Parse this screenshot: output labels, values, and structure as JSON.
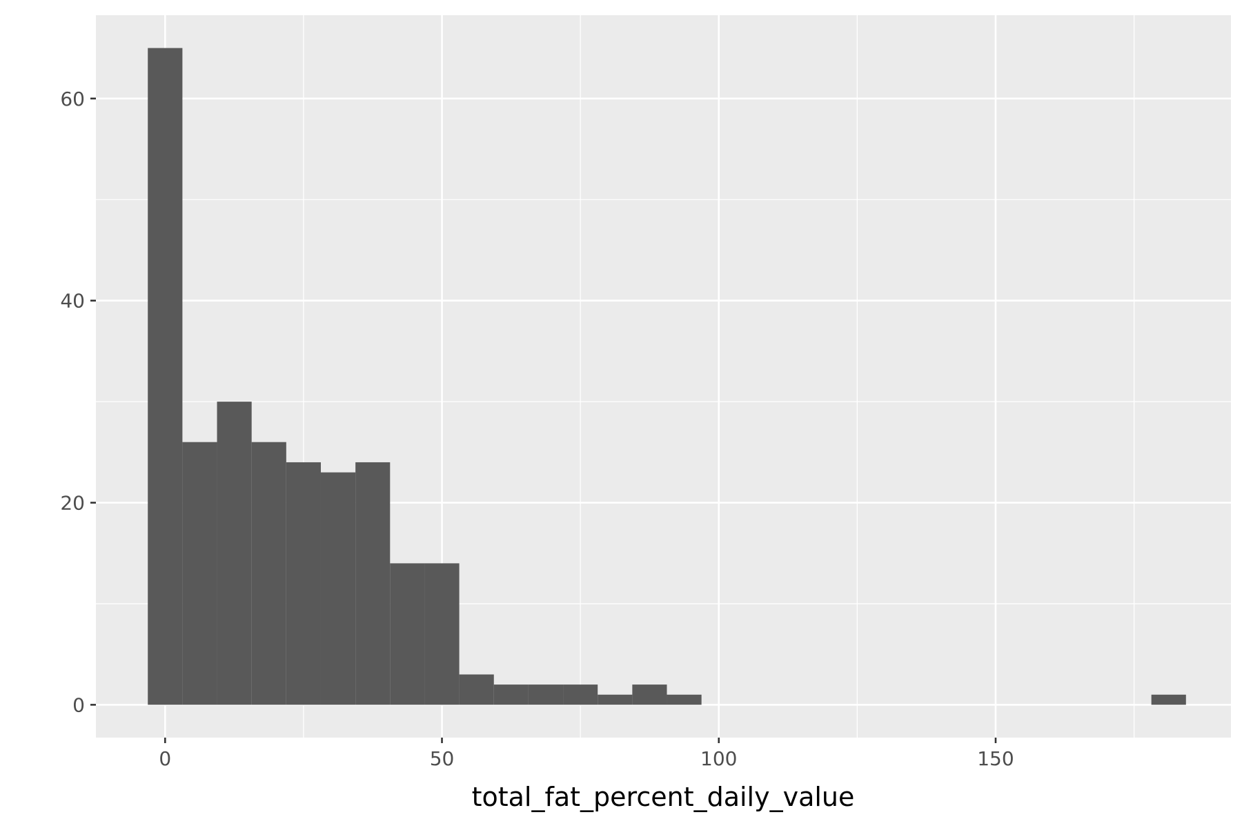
{
  "chart_data": {
    "type": "bar",
    "subtype": "histogram",
    "title": "",
    "xlabel": "total_fat_percent_daily_value",
    "ylabel": "",
    "xlim": [
      -12.5,
      192.5
    ],
    "ylim": [
      -3.25,
      68.25
    ],
    "x_ticks": [
      0,
      50,
      100,
      150
    ],
    "y_ticks": [
      0,
      20,
      40,
      60
    ],
    "x_minor_ticks": [
      25,
      75,
      125,
      175
    ],
    "y_minor_ticks": [
      10,
      30,
      50
    ],
    "grid": true,
    "bin_width": 6.25,
    "bin_start": -3.125,
    "values": [
      65,
      26,
      30,
      26,
      24,
      23,
      24,
      14,
      14,
      3,
      2,
      2,
      2,
      1,
      2,
      1,
      0,
      0,
      0,
      0,
      0,
      0,
      0,
      0,
      0,
      0,
      0,
      0,
      0,
      1
    ],
    "bar_color": "#595959",
    "panel_color": "#ebebeb",
    "grid_color": "#ffffff"
  }
}
